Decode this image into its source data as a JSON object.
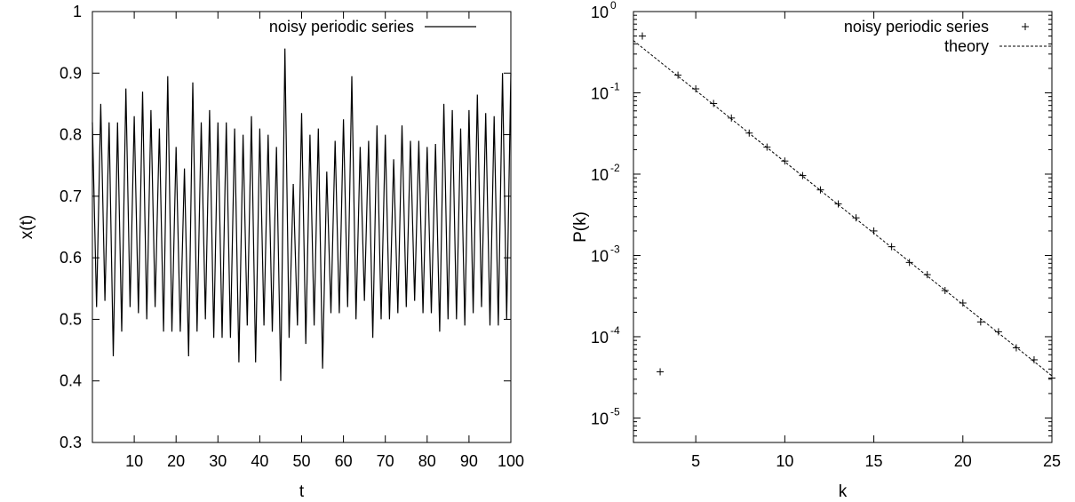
{
  "chart_data": [
    {
      "type": "line",
      "xlabel": "t",
      "ylabel": "x(t)",
      "xlim": [
        0,
        100
      ],
      "ylim": [
        0.3,
        1.0
      ],
      "xticks": [
        "10",
        "20",
        "30",
        "40",
        "50",
        "60",
        "70",
        "80",
        "90",
        "100"
      ],
      "yticks": [
        "0.3",
        "0.4",
        "0.5",
        "0.6",
        "0.7",
        "0.8",
        "0.9",
        "1"
      ],
      "legend_position": "top-right",
      "series": [
        {
          "name": "noisy periodic series",
          "x": [
            0,
            1,
            2,
            3,
            4,
            5,
            6,
            7,
            8,
            9,
            10,
            11,
            12,
            13,
            14,
            15,
            16,
            17,
            18,
            19,
            20,
            21,
            22,
            23,
            24,
            25,
            26,
            27,
            28,
            29,
            30,
            31,
            32,
            33,
            34,
            35,
            36,
            37,
            38,
            39,
            40,
            41,
            42,
            43,
            44,
            45,
            46,
            47,
            48,
            49,
            50,
            51,
            52,
            53,
            54,
            55,
            56,
            57,
            58,
            59,
            60,
            61,
            62,
            63,
            64,
            65,
            66,
            67,
            68,
            69,
            70,
            71,
            72,
            73,
            74,
            75,
            76,
            77,
            78,
            79,
            80,
            81,
            82,
            83,
            84,
            85,
            86,
            87,
            88,
            89,
            90,
            91,
            92,
            93,
            94,
            95,
            96,
            97,
            98,
            99,
            100
          ],
          "y": [
            0.82,
            0.52,
            0.85,
            0.53,
            0.82,
            0.44,
            0.82,
            0.48,
            0.875,
            0.52,
            0.83,
            0.51,
            0.87,
            0.5,
            0.84,
            0.52,
            0.81,
            0.48,
            0.895,
            0.48,
            0.78,
            0.48,
            0.745,
            0.44,
            0.885,
            0.48,
            0.82,
            0.5,
            0.84,
            0.47,
            0.82,
            0.47,
            0.82,
            0.47,
            0.81,
            0.43,
            0.8,
            0.49,
            0.83,
            0.43,
            0.81,
            0.49,
            0.8,
            0.48,
            0.78,
            0.4,
            0.94,
            0.47,
            0.72,
            0.49,
            0.835,
            0.46,
            0.8,
            0.49,
            0.81,
            0.42,
            0.74,
            0.51,
            0.79,
            0.51,
            0.825,
            0.52,
            0.895,
            0.5,
            0.78,
            0.53,
            0.79,
            0.47,
            0.815,
            0.5,
            0.8,
            0.5,
            0.76,
            0.51,
            0.815,
            0.52,
            0.79,
            0.53,
            0.79,
            0.51,
            0.78,
            0.51,
            0.785,
            0.48,
            0.85,
            0.5,
            0.84,
            0.5,
            0.81,
            0.49,
            0.84,
            0.51,
            0.865,
            0.52,
            0.835,
            0.49,
            0.83,
            0.49,
            0.9,
            0.5,
            0.9
          ]
        }
      ]
    },
    {
      "type": "scatter",
      "xlabel": "k",
      "ylabel": "P(k)",
      "xlim": [
        1.5,
        25
      ],
      "ylim": [
        5e-06,
        1
      ],
      "yscale": "log",
      "xticks": [
        "5",
        "10",
        "15",
        "20",
        "25"
      ],
      "ytick_bases": [
        "10",
        "10",
        "10",
        "10",
        "10",
        "10"
      ],
      "ytick_exponents": [
        "-5",
        "-4",
        "-3",
        "-2",
        "-1",
        "0"
      ],
      "legend_position": "top-right",
      "series": [
        {
          "name": "noisy periodic series",
          "marker": "plus",
          "x": [
            2,
            3,
            4,
            5,
            6,
            7,
            8,
            9,
            10,
            11,
            12,
            13,
            14,
            15,
            16,
            17,
            18,
            19,
            20,
            21,
            22,
            23,
            24,
            25
          ],
          "y": [
            0.5,
            3.7e-05,
            0.165,
            0.112,
            0.074,
            0.049,
            0.032,
            0.0215,
            0.0145,
            0.0096,
            0.0064,
            0.0043,
            0.0029,
            0.002,
            0.00128,
            0.00082,
            0.00058,
            0.00037,
            0.00026,
            0.000152,
            0.000115,
            7.3e-05,
            5.2e-05,
            3.1e-05
          ]
        },
        {
          "name": "theory",
          "style": "dashed",
          "x": [
            1.5,
            25
          ],
          "y": [
            0.44,
            3.3e-05
          ]
        }
      ]
    }
  ]
}
